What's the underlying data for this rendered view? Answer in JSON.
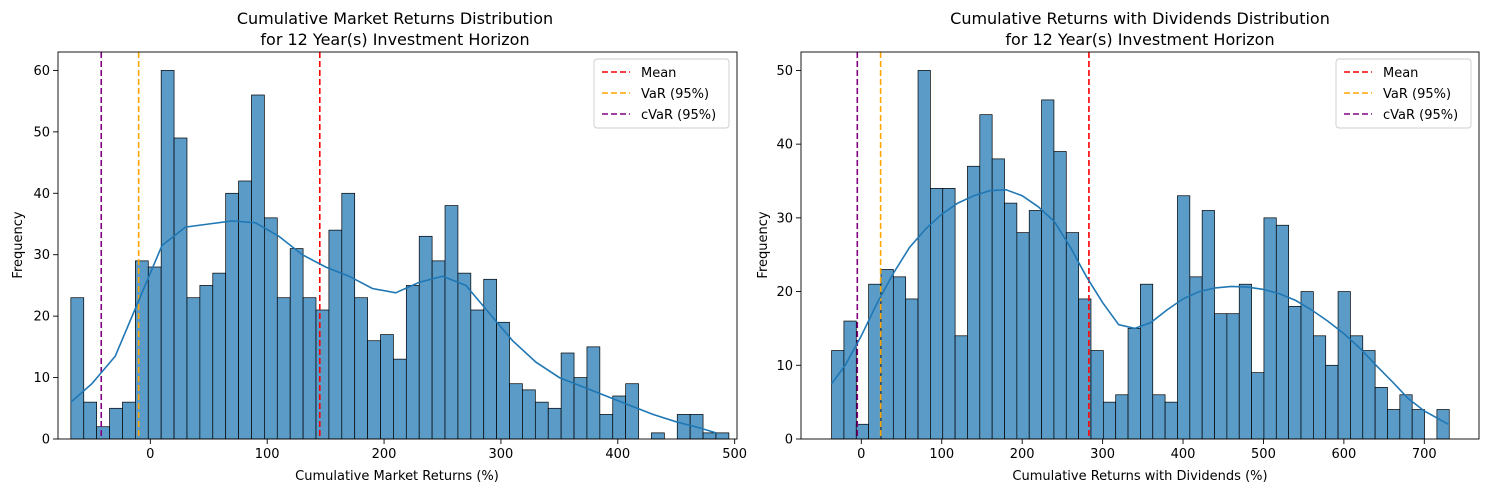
{
  "colors": {
    "bar_fill": "#5a9bc8",
    "bar_edge": "#000000",
    "kde": "#1f77b4",
    "mean": "#ff0000",
    "var": "#ffa500",
    "cvar": "#800080"
  },
  "chart_data": [
    {
      "type": "bar",
      "subtype": "histogram-with-kde",
      "title": "Cumulative Market Returns Distribution\nfor 12 Year(s) Investment Horizon",
      "title_lines": [
        "Cumulative Market Returns Distribution",
        "for 12 Year(s) Investment Horizon"
      ],
      "xlabel": "Cumulative Market Returns (%)",
      "ylabel": "Frequency",
      "xlim": [
        -79,
        502
      ],
      "ylim": [
        0,
        63
      ],
      "xticks": [
        0,
        100,
        200,
        300,
        400,
        500
      ],
      "yticks": [
        0,
        10,
        20,
        30,
        40,
        50,
        60
      ],
      "bin_start": -68,
      "bin_width": 11.04,
      "counts": [
        23,
        6,
        2,
        5,
        6,
        29,
        28,
        60,
        49,
        23,
        25,
        27,
        40,
        42,
        56,
        36,
        23,
        31,
        23,
        21,
        34,
        40,
        23,
        16,
        17,
        13,
        25,
        33,
        29,
        38,
        27,
        21,
        26,
        19,
        9,
        8,
        6,
        5,
        14,
        10,
        15,
        4,
        7,
        9,
        0,
        1,
        0,
        4,
        4,
        1,
        1
      ],
      "kde_x": [
        -68,
        -50,
        -30,
        -10,
        10,
        30,
        50,
        70,
        90,
        110,
        130,
        150,
        170,
        190,
        210,
        230,
        250,
        270,
        290,
        310,
        330,
        350,
        370,
        390,
        410,
        430,
        450,
        470,
        484
      ],
      "kde_y": [
        6,
        9,
        13.5,
        22.5,
        31.5,
        34.5,
        35,
        35.5,
        35.2,
        33,
        30,
        28,
        26.5,
        24.5,
        23.8,
        25.5,
        26.5,
        25,
        20.5,
        16,
        12.5,
        10,
        8.5,
        7,
        5.5,
        4,
        2.8,
        1.8,
        1
      ],
      "lines": [
        {
          "name": "Mean",
          "x": 145,
          "color": "#ff0000"
        },
        {
          "name": "VaR (95%)",
          "x": -10,
          "color": "#ffa500"
        },
        {
          "name": "cVaR (95%)",
          "x": -42,
          "color": "#800080"
        }
      ],
      "legend": [
        "Mean",
        "VaR (95%)",
        "cVaR (95%)"
      ],
      "legend_loc": "upper right",
      "grid": false
    },
    {
      "type": "bar",
      "subtype": "histogram-with-kde",
      "title": "Cumulative Returns with Dividends Distribution\nfor 12 Year(s) Investment Horizon",
      "title_lines": [
        "Cumulative Returns with Dividends Distribution",
        "for 12 Year(s) Investment Horizon"
      ],
      "xlabel": "Cumulative Returns with Dividends (%)",
      "ylabel": "Frequency",
      "xlim": [
        -75,
        768
      ],
      "ylim": [
        0,
        52.5
      ],
      "xticks": [
        0,
        100,
        200,
        300,
        400,
        500,
        600,
        700
      ],
      "yticks": [
        0,
        10,
        20,
        30,
        40,
        50
      ],
      "bin_start": -37,
      "bin_width": 15.36,
      "counts": [
        12,
        16,
        2,
        21,
        23,
        22,
        19,
        50,
        34,
        34,
        14,
        37,
        44,
        38,
        32,
        28,
        31,
        46,
        39,
        28,
        19,
        12,
        5,
        6,
        15,
        21,
        6,
        5,
        33,
        22,
        31,
        17,
        17,
        21,
        9,
        30,
        29,
        18,
        20,
        14,
        10,
        20,
        14,
        12,
        7,
        4,
        6,
        4,
        0,
        4
      ],
      "kde_x": [
        -37,
        -20,
        0,
        20,
        40,
        60,
        80,
        100,
        120,
        140,
        160,
        180,
        200,
        220,
        240,
        260,
        280,
        300,
        320,
        340,
        360,
        380,
        400,
        420,
        440,
        460,
        480,
        500,
        520,
        540,
        560,
        580,
        600,
        620,
        640,
        660,
        680,
        700,
        730
      ],
      "kde_y": [
        7.5,
        10,
        14,
        18.5,
        22.5,
        26,
        28.5,
        30.5,
        32,
        33,
        33.7,
        33.8,
        33,
        31.5,
        29.5,
        26,
        22,
        18.5,
        15.5,
        15,
        15.8,
        17.5,
        19,
        20,
        20.5,
        20.7,
        20.6,
        20.3,
        19.7,
        18.8,
        17.5,
        16,
        14.3,
        12.3,
        10,
        7.8,
        5.5,
        3.8,
        2
      ],
      "lines": [
        {
          "name": "Mean",
          "x": 283,
          "color": "#ff0000"
        },
        {
          "name": "VaR (95%)",
          "x": 24,
          "color": "#ffa500"
        },
        {
          "name": "cVaR (95%)",
          "x": -5,
          "color": "#800080"
        }
      ],
      "legend": [
        "Mean",
        "VaR (95%)",
        "cVaR (95%)"
      ],
      "legend_loc": "upper right",
      "grid": false
    }
  ]
}
